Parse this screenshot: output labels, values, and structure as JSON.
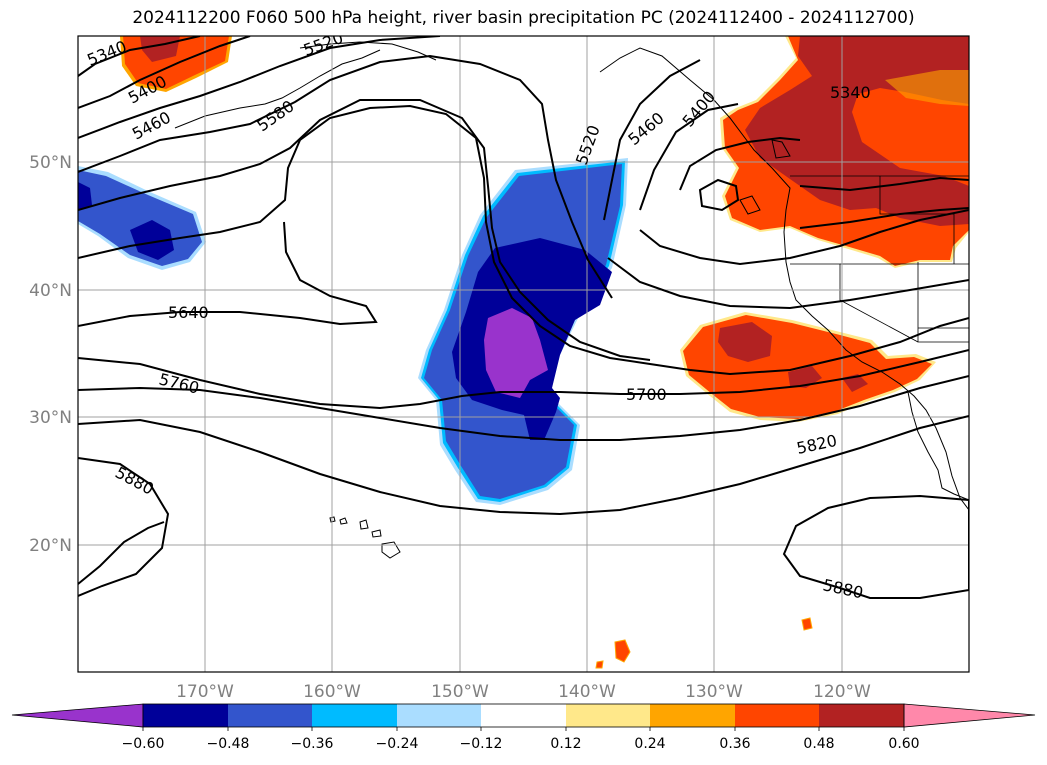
{
  "title": "2024112200 F060 500 hPa height, river basin precipitation PC (2024112400 - 2024112700)",
  "lat_labels": [
    "50°N",
    "40°N",
    "30°N",
    "20°N"
  ],
  "lon_labels": [
    "170°W",
    "160°W",
    "150°W",
    "140°W",
    "130°W",
    "120°W"
  ],
  "contour_labels": [
    "5340",
    "5400",
    "5460",
    "5520",
    "5580",
    "5640",
    "5700",
    "5760",
    "5820",
    "5880",
    "5340",
    "5460",
    "5400",
    "5520",
    "5880"
  ],
  "colorbar": {
    "ticks": [
      "−0.60",
      "−0.48",
      "−0.36",
      "−0.24",
      "−0.12",
      "0.12",
      "0.24",
      "0.36",
      "0.48",
      "0.60"
    ],
    "colors": [
      "#9933cc",
      "#000099",
      "#3355cc",
      "#00bbff",
      "#aaddff",
      "#ffffff",
      "#ffe88a",
      "#ffa500",
      "#ff4500",
      "#b22222",
      "#ff88aa"
    ]
  },
  "colors": {
    "neg_light": "#aaddff",
    "neg_cyan": "#00bbff",
    "neg_mid": "#3355cc",
    "neg_dark": "#000099",
    "neg_purple": "#9933cc",
    "pos_yellow": "#ffe88a",
    "pos_orange": "#ffa500",
    "pos_red": "#ff4500",
    "pos_dark": "#b22222"
  }
}
